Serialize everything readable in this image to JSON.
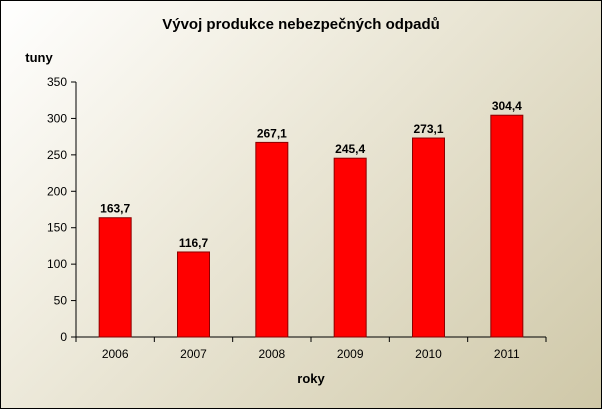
{
  "chart_data": {
    "type": "bar",
    "title": "Vývoj produkce nebezpečných odpadů",
    "xlabel": "roky",
    "ylabel": "tuny",
    "categories": [
      "2006",
      "2007",
      "2008",
      "2009",
      "2010",
      "2011"
    ],
    "values": [
      163.7,
      116.7,
      267.1,
      245.4,
      273.1,
      304.4
    ],
    "value_labels": [
      "163,7",
      "116,7",
      "267,1",
      "245,4",
      "273,1",
      "304,4"
    ],
    "ylim": [
      0,
      350
    ],
    "yticks": [
      0,
      50,
      100,
      150,
      200,
      250,
      300,
      350
    ],
    "grid": false,
    "legend": false,
    "colors": {
      "bar": "#ff0000",
      "bar_edge": "#8b0000",
      "axis": "#000000"
    }
  }
}
